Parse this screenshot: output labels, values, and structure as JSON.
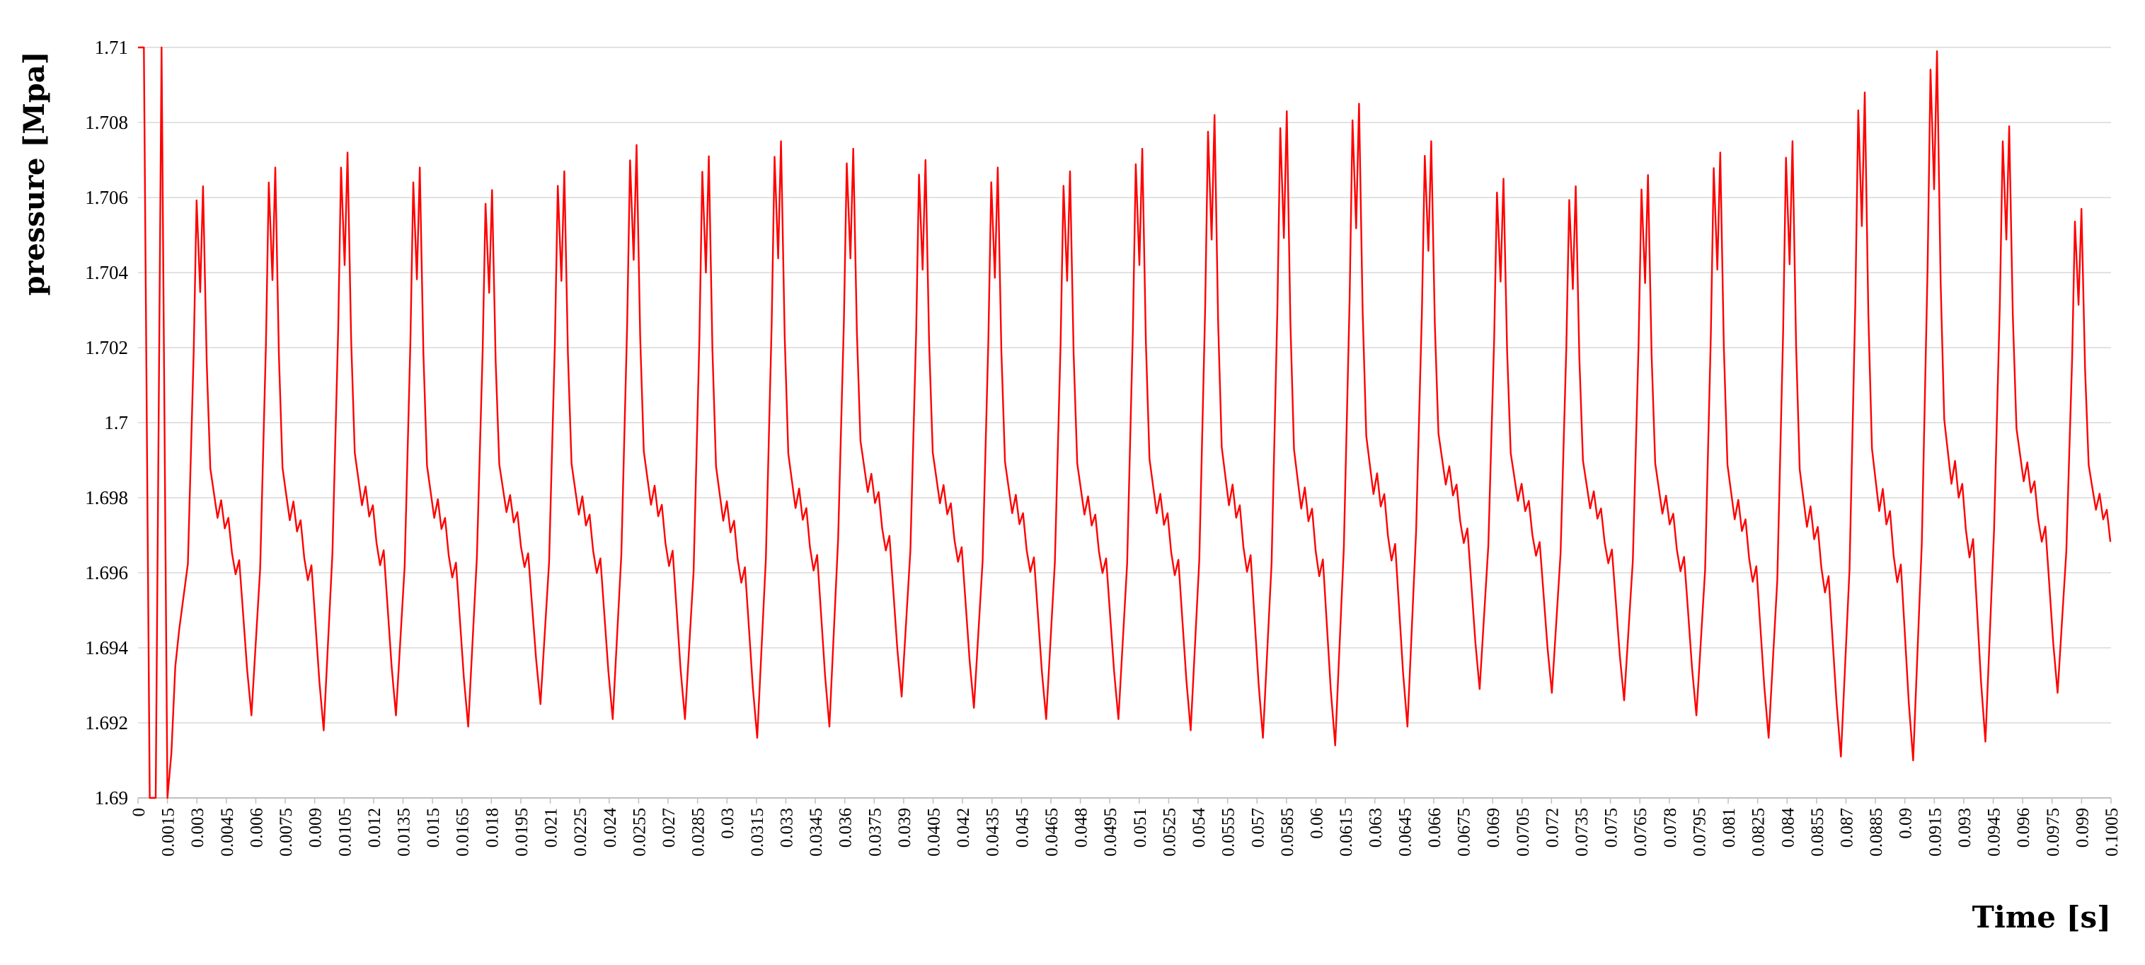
{
  "chart_data": {
    "type": "line",
    "title": "",
    "xlabel": "Time [s]",
    "ylabel": "pressure [Mpa]",
    "xlim": [
      0,
      0.1005
    ],
    "ylim": [
      1.69,
      1.71
    ],
    "grid": "horizontal",
    "legend": "none",
    "x_tick_labels": [
      "0",
      "0.0015",
      "0.003",
      "0.0045",
      "0.006",
      "0.0075",
      "0.009",
      "0.0105",
      "0.012",
      "0.0135",
      "0.015",
      "0.0165",
      "0.018",
      "0.0195",
      "0.021",
      "0.0225",
      "0.024",
      "0.0255",
      "0.027",
      "0.0285",
      "0.03",
      "0.0315",
      "0.033",
      "0.0345",
      "0.036",
      "0.0375",
      "0.039",
      "0.0405",
      "0.042",
      "0.0435",
      "0.045",
      "0.0465",
      "0.048",
      "0.0495",
      "0.051",
      "0.0525",
      "0.054",
      "0.0555",
      "0.057",
      "0.0585",
      "0.06",
      "0.0615",
      "0.063",
      "0.0645",
      "0.066",
      "0.0675",
      "0.069",
      "0.0705",
      "0.072",
      "0.0735",
      "0.075",
      "0.0765",
      "0.078",
      "0.0795",
      "0.081",
      "0.0825",
      "0.084",
      "0.0855",
      "0.087",
      "0.0885",
      "0.09",
      "0.0915",
      "0.093",
      "0.0945",
      "0.096",
      "0.0975",
      "0.099",
      "0.1005"
    ],
    "y_tick_labels": [
      "1.69",
      "1.692",
      "1.694",
      "1.696",
      "1.698",
      "1.7",
      "1.702",
      "1.704",
      "1.706",
      "1.708",
      "1.71"
    ],
    "series": [
      {
        "color": "#ff0000",
        "cycle_start": 0.0021,
        "cycle_period": 0.00368,
        "cycle_count": 27,
        "cycle_shape": {
          "phase": [
            0,
            0.12,
            0.2,
            0.24,
            0.29,
            0.33,
            0.38,
            0.43,
            0.48,
            0.53,
            0.58,
            0.63,
            0.68,
            0.73,
            0.78,
            0.83,
            0.88,
            0.94,
            1.0
          ],
          "pressure": [
            1.6922,
            1.6965,
            1.7025,
            1.7068,
            1.7042,
            1.7072,
            1.7022,
            1.6992,
            1.6985,
            1.6978,
            1.6983,
            1.6975,
            1.6978,
            1.6968,
            1.6962,
            1.6966,
            1.6952,
            1.6935,
            1.6922
          ]
        },
        "cycle_peak": [
          1.7063,
          1.7068,
          1.7072,
          1.7068,
          1.7062,
          1.7067,
          1.7074,
          1.7071,
          1.7075,
          1.7073,
          1.707,
          1.7068,
          1.7067,
          1.7073,
          1.7082,
          1.7083,
          1.7085,
          1.7075,
          1.7065,
          1.7063,
          1.7066,
          1.7072,
          1.7075,
          1.7088,
          1.7099,
          1.7079,
          1.7057
        ],
        "cycle_trough": [
          1.6922,
          1.6918,
          1.6922,
          1.6919,
          1.6925,
          1.6921,
          1.6921,
          1.6916,
          1.6919,
          1.6927,
          1.6924,
          1.6921,
          1.6921,
          1.6918,
          1.6916,
          1.6914,
          1.6919,
          1.6929,
          1.6928,
          1.6926,
          1.6922,
          1.6916,
          1.6911,
          1.691,
          1.6915,
          1.6928,
          1.6929
        ],
        "initial_x": [
          0,
          0.0003,
          0.0006,
          0.0009,
          0.0012,
          0.0015,
          0.0017,
          0.0019,
          0.0021
        ],
        "initial_y": [
          1.71,
          1.71,
          1.69,
          1.69,
          1.71,
          1.69,
          1.6912,
          1.6935,
          1.6945
        ]
      }
    ]
  }
}
